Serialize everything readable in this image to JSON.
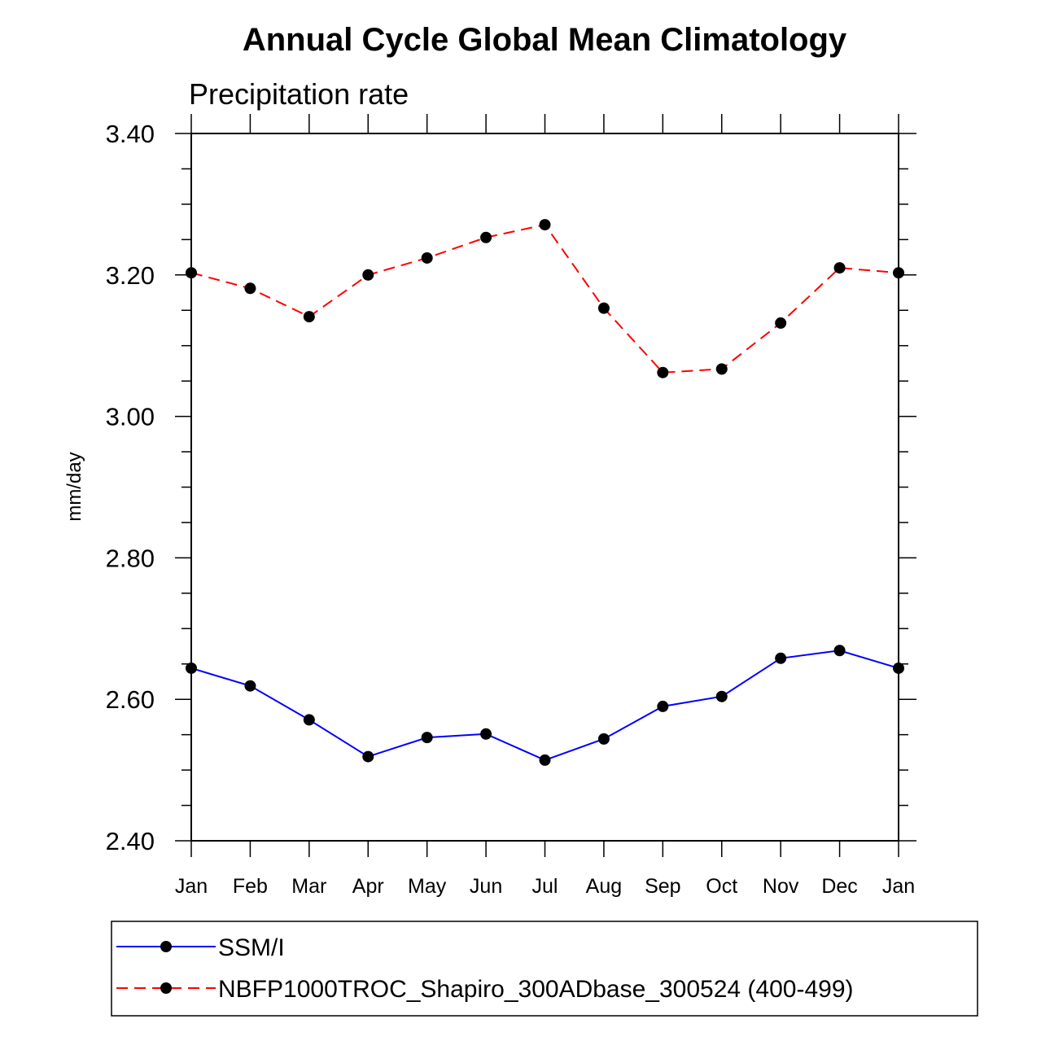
{
  "chart_data": {
    "type": "line",
    "title": "Annual Cycle Global Mean Climatology",
    "subtitle": "Precipitation rate",
    "xlabel": "",
    "ylabel": "mm/day",
    "categories": [
      "Jan",
      "Feb",
      "Mar",
      "Apr",
      "May",
      "Jun",
      "Jul",
      "Aug",
      "Sep",
      "Oct",
      "Nov",
      "Dec",
      "Jan"
    ],
    "ylim": [
      2.4,
      3.4
    ],
    "yticks": [
      "2.40",
      "2.60",
      "2.80",
      "3.00",
      "3.20",
      "3.40"
    ],
    "ytick_values": [
      2.4,
      2.6,
      2.8,
      3.0,
      3.2,
      3.4
    ],
    "grid": false,
    "legend_position": "bottom",
    "series": [
      {
        "name": "SSM/I",
        "color": "#0000ff",
        "dash": false,
        "values": [
          2.644,
          2.619,
          2.571,
          2.519,
          2.546,
          2.551,
          2.514,
          2.544,
          2.59,
          2.604,
          2.658,
          2.669,
          2.644
        ]
      },
      {
        "name": "NBFP1000TROC_Shapiro_300ADbase_300524 (400-499)",
        "color": "#ff0000",
        "dash": true,
        "values": [
          3.203,
          3.181,
          3.141,
          3.2,
          3.224,
          3.253,
          3.271,
          3.153,
          3.062,
          3.067,
          3.132,
          3.21,
          3.203
        ]
      }
    ]
  }
}
